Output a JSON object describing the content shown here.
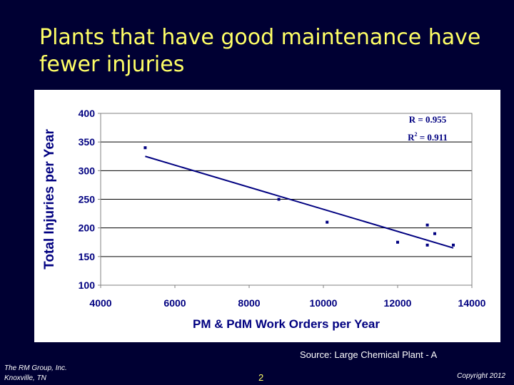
{
  "slide": {
    "title": "Plants that have good maintenance have fewer injuries",
    "source": "Source: Large Chemical Plant - A",
    "footer_company": "The RM Group, Inc.",
    "footer_location": "Knoxville, TN",
    "page_number": "2",
    "copyright": "Copyright 2012"
  },
  "colors": {
    "background": "#000033",
    "title": "#FFFF66",
    "series": "#000080"
  },
  "chart_data": {
    "type": "scatter",
    "xlabel": "PM & PdM Work Orders per Year",
    "ylabel": "Total Injuries per Year",
    "xlim": [
      4000,
      14000
    ],
    "ylim": [
      100,
      400
    ],
    "x_ticks": [
      4000,
      6000,
      8000,
      10000,
      12000,
      14000
    ],
    "y_ticks": [
      100,
      150,
      200,
      250,
      300,
      350,
      400
    ],
    "grid": "horizontal",
    "points": [
      {
        "x": 5200,
        "y": 340
      },
      {
        "x": 8800,
        "y": 250
      },
      {
        "x": 10100,
        "y": 210
      },
      {
        "x": 12000,
        "y": 175
      },
      {
        "x": 12800,
        "y": 205
      },
      {
        "x": 12800,
        "y": 170
      },
      {
        "x": 13000,
        "y": 190
      },
      {
        "x": 13500,
        "y": 170
      }
    ],
    "trendline": {
      "type": "linear",
      "x_start": 5200,
      "y_start": 325,
      "x_end": 13500,
      "y_end": 165
    },
    "annotations": {
      "r": "R = 0.955",
      "r2_prefix": "R",
      "r2_exp": "2",
      "r2_suffix": " = 0.911"
    }
  }
}
